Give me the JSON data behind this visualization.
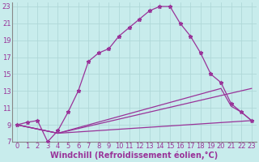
{
  "xlabel": "Windchill (Refroidissement éolien,°C)",
  "xlim": [
    -0.5,
    23.5
  ],
  "ylim": [
    7,
    23.5
  ],
  "xticks": [
    0,
    1,
    2,
    3,
    4,
    5,
    6,
    7,
    8,
    9,
    10,
    11,
    12,
    13,
    14,
    15,
    16,
    17,
    18,
    19,
    20,
    21,
    22,
    23
  ],
  "yticks": [
    7,
    9,
    11,
    13,
    15,
    17,
    19,
    21,
    23
  ],
  "bg_color": "#c8ecec",
  "grid_color": "#b0d8d8",
  "line_color": "#993399",
  "curve1_x": [
    0,
    1,
    2,
    3,
    4,
    5,
    6,
    7,
    8,
    9,
    10,
    11,
    12,
    13,
    14,
    15,
    16,
    17,
    18,
    19,
    20,
    21,
    22,
    23
  ],
  "curve1_y": [
    9.0,
    9.3,
    9.5,
    7.0,
    8.3,
    10.5,
    13.0,
    16.5,
    17.5,
    18.0,
    19.5,
    20.5,
    21.5,
    22.5,
    23.0,
    23.0,
    21.0,
    19.5,
    17.5,
    15.0,
    14.0,
    11.5,
    10.5,
    9.5
  ],
  "curve2_x": [
    0,
    4,
    20,
    21,
    22,
    23
  ],
  "curve2_y": [
    9.0,
    8.0,
    13.3,
    11.2,
    10.5,
    9.5
  ],
  "curve3_x": [
    0,
    4,
    23
  ],
  "curve3_y": [
    9.0,
    8.0,
    13.3
  ],
  "curve4_x": [
    0,
    4,
    23
  ],
  "curve4_y": [
    9.0,
    8.0,
    9.5
  ],
  "font_size_label": 7,
  "font_size_tick": 6.0
}
